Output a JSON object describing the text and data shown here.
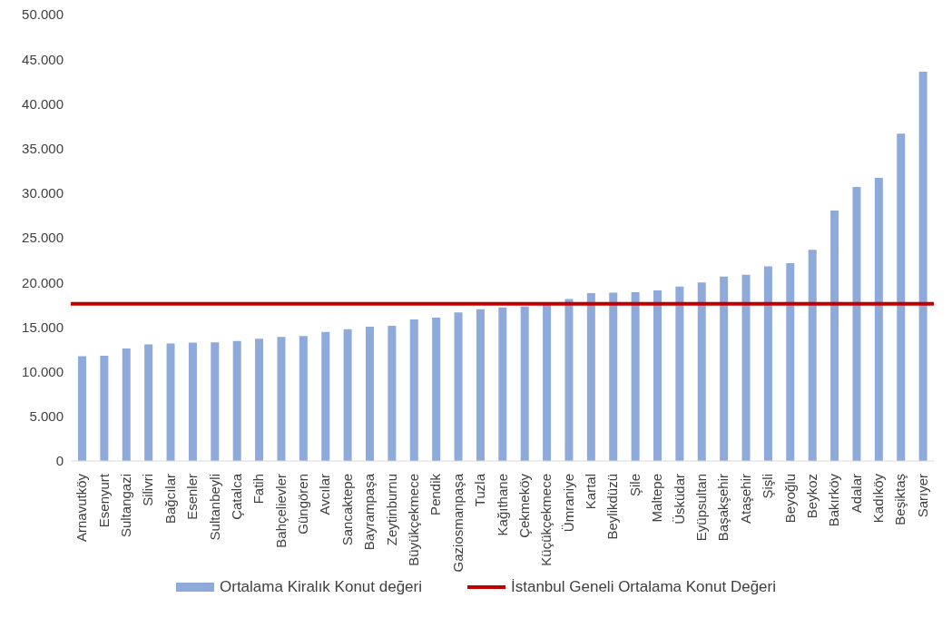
{
  "chart_data": {
    "type": "bar",
    "categories": [
      "Arnavutköy",
      "Esenyurt",
      "Sultangazi",
      "Silivri",
      "Bağcılar",
      "Esenler",
      "Sultanbeyli",
      "Çatalca",
      "Fatih",
      "Bahçelievler",
      "Güngören",
      "Avcılar",
      "Sancaktepe",
      "Bayrampaşa",
      "Zeytinburnu",
      "Büyükçekmece",
      "Pendik",
      "Gaziosmanpaşa",
      "Tuzla",
      "Kağıthane",
      "Çekmeköy",
      "Küçükçekmece",
      "Ümraniye",
      "Kartal",
      "Beylikdüzü",
      "Şile",
      "Maltepe",
      "Üsküdar",
      "Eyüpsultan",
      "Başakşehir",
      "Ataşehir",
      "Şişli",
      "Beyoğlu",
      "Beykoz",
      "Bakırköy",
      "Adalar",
      "Kadıköy",
      "Beşiktaş",
      "Sarıyer"
    ],
    "series": [
      {
        "name": "Ortalama Kiralık Konut değeri",
        "color": "#8eaadb",
        "values": [
          11750,
          11800,
          12600,
          13050,
          13150,
          13250,
          13300,
          13450,
          13700,
          13900,
          14000,
          14450,
          14750,
          15050,
          15150,
          15850,
          16050,
          16650,
          17000,
          17200,
          17300,
          17600,
          18150,
          18800,
          18850,
          18900,
          19100,
          19550,
          20000,
          20650,
          20850,
          21800,
          22150,
          23650,
          28050,
          30700,
          31700,
          36650,
          43600
        ]
      }
    ],
    "ref_lines": [
      {
        "axis": "y",
        "value": 17600,
        "label": "İstanbul Geneli Ortalama Konut Değeri",
        "color": "#c00000"
      }
    ],
    "ylim": [
      0,
      50000
    ],
    "yticks": [
      {
        "value": 0,
        "label": "0"
      },
      {
        "value": 5000,
        "label": "5.000"
      },
      {
        "value": 10000,
        "label": "10.000"
      },
      {
        "value": 15000,
        "label": "15.000"
      },
      {
        "value": 20000,
        "label": "20.000"
      },
      {
        "value": 25000,
        "label": "25.000"
      },
      {
        "value": 30000,
        "label": "30.000"
      },
      {
        "value": 35000,
        "label": "35.000"
      },
      {
        "value": 40000,
        "label": "40.000"
      },
      {
        "value": 45000,
        "label": "45.000"
      },
      {
        "value": 50000,
        "label": "50.000"
      }
    ],
    "grid": false,
    "legend": "bottom"
  }
}
